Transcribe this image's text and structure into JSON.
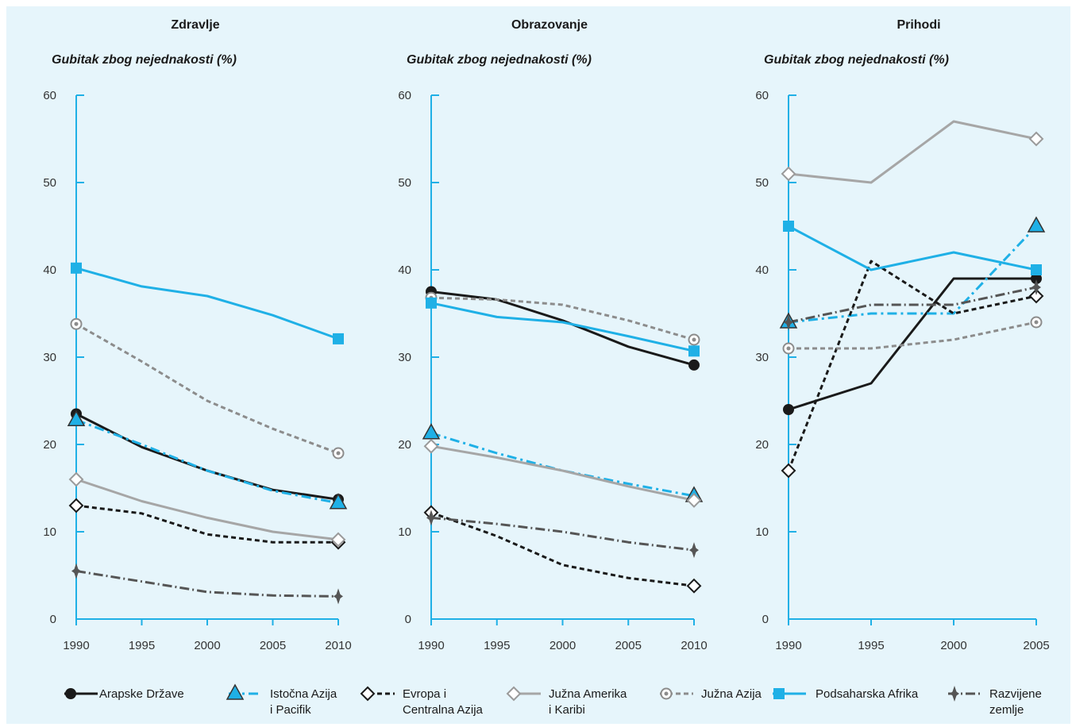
{
  "chart_data": [
    {
      "type": "line",
      "title": "Zdravlje",
      "ylabel": "Gubitak zbog nejednakosti  (%)",
      "ylim": [
        0,
        60
      ],
      "yticks": [
        0,
        10,
        20,
        30,
        40,
        50,
        60
      ],
      "x": [
        1990,
        1995,
        2000,
        2005,
        2010
      ],
      "series": [
        {
          "key": "arab",
          "values": [
            23.5,
            19.7,
            17.0,
            14.8,
            13.7
          ]
        },
        {
          "key": "eap",
          "values": [
            22.8,
            20.0,
            17.0,
            14.7,
            13.3
          ]
        },
        {
          "key": "eca",
          "values": [
            13.0,
            12.1,
            9.7,
            8.8,
            8.8
          ]
        },
        {
          "key": "lac",
          "values": [
            16.0,
            13.5,
            11.6,
            10.0,
            9.1
          ]
        },
        {
          "key": "sa",
          "values": [
            33.8,
            29.5,
            25.0,
            21.8,
            19.0
          ]
        },
        {
          "key": "ssa",
          "values": [
            40.2,
            38.1,
            37.0,
            34.8,
            32.1
          ]
        },
        {
          "key": "dev",
          "values": [
            5.5,
            4.3,
            3.1,
            2.7,
            2.6
          ]
        }
      ]
    },
    {
      "type": "line",
      "title": "Obrazovanje",
      "ylabel": "Gubitak zbog nejednakosti  (%)",
      "ylim": [
        0,
        60
      ],
      "yticks": [
        0,
        10,
        20,
        30,
        40,
        50,
        60
      ],
      "x": [
        1990,
        1995,
        2000,
        2005,
        2010
      ],
      "series": [
        {
          "key": "arab",
          "values": [
            37.5,
            36.6,
            34.2,
            31.2,
            29.1
          ]
        },
        {
          "key": "eap",
          "values": [
            21.3,
            19.0,
            17.0,
            15.5,
            14.1
          ]
        },
        {
          "key": "eca",
          "values": [
            12.2,
            9.5,
            6.2,
            4.7,
            3.8
          ]
        },
        {
          "key": "lac",
          "values": [
            19.8,
            18.5,
            17.0,
            15.2,
            13.6
          ]
        },
        {
          "key": "sa",
          "values": [
            36.8,
            36.6,
            36.0,
            34.2,
            32.0
          ]
        },
        {
          "key": "ssa",
          "values": [
            36.2,
            34.6,
            34.0,
            32.4,
            30.7
          ]
        },
        {
          "key": "dev",
          "values": [
            11.6,
            10.9,
            10.0,
            8.8,
            7.9
          ]
        }
      ]
    },
    {
      "type": "line",
      "title": "Prihodi",
      "ylabel": "Gubitak zbog nejednakosti  (%)",
      "ylim": [
        0,
        60
      ],
      "yticks": [
        0,
        10,
        20,
        30,
        40,
        50,
        60
      ],
      "x": [
        1990,
        1995,
        2000,
        2005
      ],
      "series": [
        {
          "key": "arab",
          "values": [
            24,
            27,
            39,
            39
          ]
        },
        {
          "key": "eap",
          "values": [
            34,
            35,
            35,
            45
          ]
        },
        {
          "key": "eca",
          "values": [
            17,
            41,
            35,
            37
          ]
        },
        {
          "key": "lac",
          "values": [
            51,
            50,
            57,
            55
          ]
        },
        {
          "key": "sa",
          "values": [
            31,
            31,
            32,
            34
          ]
        },
        {
          "key": "ssa",
          "values": [
            45,
            40,
            42,
            40
          ]
        },
        {
          "key": "dev",
          "values": [
            34,
            36,
            36,
            38
          ]
        }
      ]
    }
  ],
  "legend": [
    {
      "key": "arab",
      "lines": [
        "Arapske Države"
      ]
    },
    {
      "key": "eap",
      "lines": [
        "Istočna Azija",
        "i Pacifik"
      ]
    },
    {
      "key": "eca",
      "lines": [
        "Evropa i",
        "Centralna Azija"
      ]
    },
    {
      "key": "lac",
      "lines": [
        "Južna Amerika",
        "i Karibi"
      ]
    },
    {
      "key": "sa",
      "lines": [
        "Južna Azija"
      ]
    },
    {
      "key": "ssa",
      "lines": [
        "Podsaharska Afrika"
      ]
    },
    {
      "key": "dev",
      "lines": [
        "Razvijene",
        "zemlje"
      ]
    }
  ],
  "styles": {
    "arab": {
      "color": "#1a1a1a",
      "dash": "",
      "marker": "circle"
    },
    "eap": {
      "color": "#1fb0e6",
      "dash": "12,5,3,5",
      "marker": "triangle"
    },
    "eca": {
      "color": "#1a1a1a",
      "dash": "6,4",
      "marker": "diamond"
    },
    "lac": {
      "color": "#a6a6a6",
      "dash": "",
      "marker": "diamond-gray"
    },
    "sa": {
      "color": "#8c8c8c",
      "dash": "6,4",
      "marker": "ring"
    },
    "ssa": {
      "color": "#1fb0e6",
      "dash": "",
      "marker": "square"
    },
    "dev": {
      "color": "#555555",
      "dash": "12,4,2,4",
      "marker": "star"
    }
  }
}
